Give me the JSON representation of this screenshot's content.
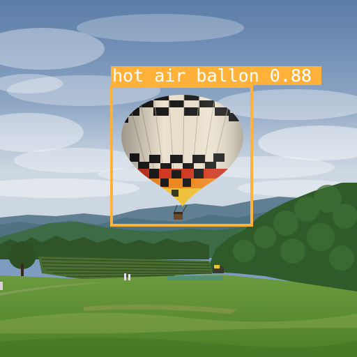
{
  "image": {
    "subject": "hot air balloon",
    "setting": "meadow with mountains under a cloudy sky"
  },
  "detection": {
    "label_text": "hot air ballon 0.88",
    "class_name": "hot air ballon",
    "confidence": 0.88,
    "color": "#ffb13a"
  },
  "palette": {
    "sky_top": "#5f82ad",
    "sky_mid": "#8fa8c6",
    "sky_horizon": "#c3cfdc",
    "mountain_far": "#5d7b8c",
    "mountain_near": "#3f6b47",
    "trees": "#2f5a2a",
    "field": "#5f8f35",
    "balloon_cream": "#ece2cf",
    "balloon_black": "#1c1c1c",
    "balloon_red": "#d23a22",
    "balloon_orange": "#f08a22",
    "balloon_yellow": "#f2c43a"
  }
}
